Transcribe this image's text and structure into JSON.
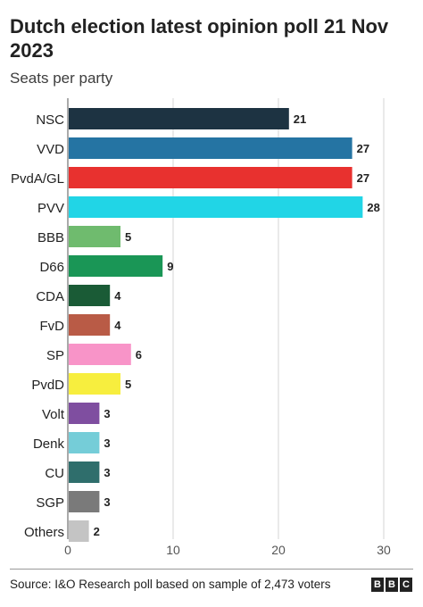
{
  "chart_data": {
    "type": "bar",
    "orientation": "horizontal",
    "title": "Dutch election latest opinion poll 21 Nov 2023",
    "subtitle": "Seats per party",
    "xlabel": "",
    "ylabel": "",
    "categories": [
      "NSC",
      "VVD",
      "PvdA/GL",
      "PVV",
      "BBB",
      "D66",
      "CDA",
      "FvD",
      "SP",
      "PvdD",
      "Volt",
      "Denk",
      "CU",
      "SGP",
      "Others"
    ],
    "values": [
      21,
      27,
      27,
      28,
      5,
      9,
      4,
      4,
      6,
      5,
      3,
      3,
      3,
      3,
      2
    ],
    "colors": [
      "#1d3342",
      "#2574a3",
      "#e8312f",
      "#21d5e6",
      "#6fbb6e",
      "#1a9656",
      "#1a5b36",
      "#b95b46",
      "#f894c8",
      "#f7ee3e",
      "#7f4ea0",
      "#75cdd8",
      "#2f6e6c",
      "#7a7a7a",
      "#c4c4c4"
    ],
    "xlim": [
      0,
      30
    ],
    "xticks": [
      0,
      10,
      20,
      30
    ],
    "grid": true,
    "data_labels": true
  },
  "source": "Source: I&O Research poll based on sample of 2,473 voters",
  "logo": [
    "B",
    "B",
    "C"
  ]
}
